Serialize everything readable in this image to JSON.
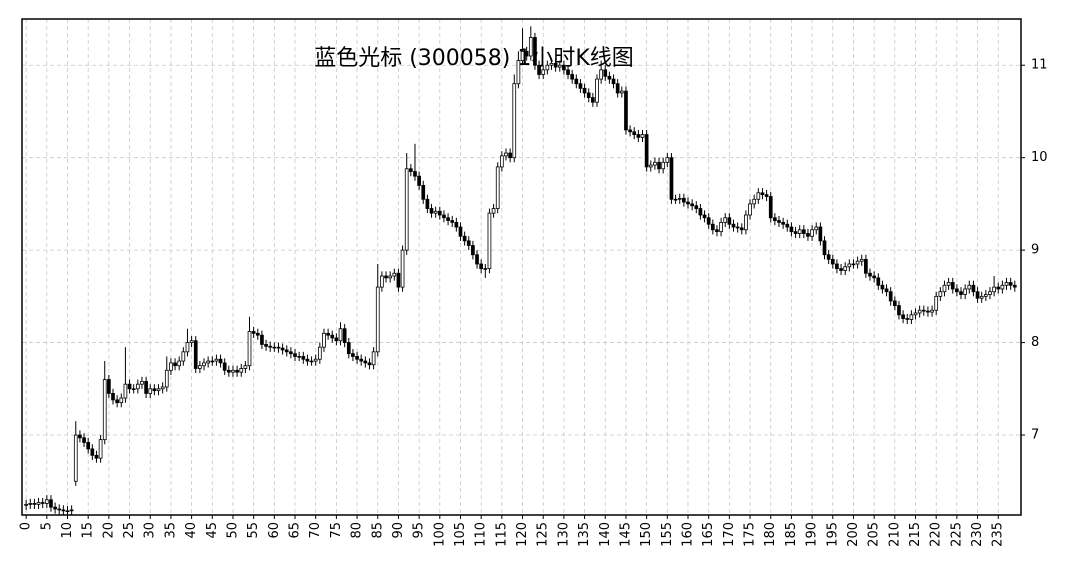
{
  "chart_data": {
    "type": "candlestick",
    "title": "蓝色光标 (300058) 1小时K线图",
    "open": [
      6.24,
      6.25,
      6.26,
      6.25,
      6.27,
      6.26,
      6.3,
      6.22,
      6.2,
      6.19,
      6.18,
      6.18,
      6.5,
      7.0,
      6.97,
      6.92,
      6.85,
      6.78,
      6.75,
      6.95,
      7.6,
      7.45,
      7.38,
      7.35,
      7.4,
      7.55,
      7.5,
      7.5,
      7.55,
      7.58,
      7.45,
      7.5,
      7.48,
      7.5,
      7.52,
      7.7,
      7.78,
      7.75,
      7.8,
      7.9,
      8.0,
      8.02,
      7.72,
      7.75,
      7.78,
      7.8,
      7.8,
      7.82,
      7.78,
      7.7,
      7.68,
      7.7,
      7.68,
      7.72,
      7.75,
      8.12,
      8.1,
      8.08,
      7.98,
      7.96,
      7.95,
      7.95,
      7.94,
      7.92,
      7.9,
      7.88,
      7.85,
      7.85,
      7.82,
      7.8,
      7.8,
      7.82,
      7.95,
      8.1,
      8.08,
      8.05,
      8.02,
      8.15,
      8.0,
      7.88,
      7.85,
      7.82,
      7.8,
      7.78,
      7.76,
      7.9,
      8.6,
      8.72,
      8.7,
      8.72,
      8.75,
      8.6,
      9.0,
      9.88,
      9.85,
      9.8,
      9.7,
      9.55,
      9.45,
      9.4,
      9.42,
      9.38,
      9.35,
      9.32,
      9.3,
      9.25,
      9.15,
      9.1,
      9.05,
      8.95,
      8.85,
      8.8,
      8.8,
      9.4,
      9.45,
      9.9,
      10.02,
      10.05,
      10.0,
      10.8,
      11.05,
      11.15,
      11.1,
      11.3,
      11.0,
      10.9,
      10.95,
      11.0,
      11.02,
      10.98,
      11.0,
      10.95,
      10.9,
      10.85,
      10.8,
      10.75,
      10.7,
      10.65,
      10.6,
      10.85,
      10.95,
      10.88,
      10.85,
      10.8,
      10.7,
      10.72,
      10.3,
      10.28,
      10.25,
      10.22,
      10.25,
      9.9,
      9.92,
      9.95,
      9.88,
      9.95,
      10.0,
      9.55,
      9.55,
      9.56,
      9.52,
      9.5,
      9.48,
      9.45,
      9.38,
      9.35,
      9.28,
      9.22,
      9.2,
      9.3,
      9.35,
      9.28,
      9.25,
      9.24,
      9.22,
      9.38,
      9.5,
      9.55,
      9.62,
      9.6,
      9.58,
      9.35,
      9.32,
      9.3,
      9.28,
      9.25,
      9.2,
      9.18,
      9.22,
      9.18,
      9.15,
      9.22,
      9.25,
      9.1,
      8.95,
      8.9,
      8.85,
      8.8,
      8.78,
      8.82,
      8.85,
      8.85,
      8.88,
      8.9,
      8.75,
      8.72,
      8.7,
      8.62,
      8.58,
      8.55,
      8.45,
      8.4,
      8.3,
      8.26,
      8.25,
      8.3,
      8.32,
      8.35,
      8.34,
      8.33,
      8.35,
      8.5,
      8.55,
      8.62,
      8.65,
      8.58,
      8.55,
      8.52,
      8.58,
      8.62,
      8.55,
      8.48,
      8.5,
      8.52,
      8.55,
      8.6,
      8.58,
      8.62,
      8.65,
      8.62
    ],
    "high": [
      6.3,
      6.31,
      6.31,
      6.32,
      6.32,
      6.35,
      6.35,
      6.27,
      6.25,
      6.24,
      6.23,
      6.24,
      7.15,
      7.05,
      7.02,
      6.97,
      6.9,
      6.83,
      7.0,
      7.8,
      7.65,
      7.5,
      7.43,
      7.45,
      7.95,
      7.6,
      7.55,
      7.6,
      7.63,
      7.63,
      7.55,
      7.55,
      7.55,
      7.57,
      7.85,
      7.83,
      7.83,
      7.85,
      7.95,
      8.15,
      8.07,
      8.07,
      7.8,
      7.83,
      7.85,
      7.85,
      7.87,
      7.87,
      7.83,
      7.75,
      7.75,
      7.75,
      7.77,
      7.8,
      8.28,
      8.17,
      8.15,
      8.13,
      8.03,
      8.01,
      8.0,
      8.0,
      7.99,
      7.97,
      7.95,
      7.93,
      7.9,
      7.9,
      7.87,
      7.85,
      7.87,
      8.0,
      8.15,
      8.15,
      8.13,
      8.1,
      8.22,
      8.2,
      8.05,
      7.93,
      7.9,
      7.87,
      7.85,
      7.83,
      7.95,
      8.85,
      8.77,
      8.77,
      8.77,
      8.8,
      8.8,
      9.05,
      10.05,
      9.93,
      10.15,
      9.85,
      9.75,
      9.6,
      9.5,
      9.47,
      9.47,
      9.43,
      9.4,
      9.37,
      9.35,
      9.3,
      9.2,
      9.15,
      9.1,
      9.0,
      8.9,
      8.85,
      9.45,
      9.5,
      9.95,
      10.07,
      10.1,
      10.1,
      10.9,
      11.15,
      11.4,
      11.2,
      11.42,
      11.35,
      11.05,
      11.0,
      11.05,
      11.07,
      11.07,
      11.05,
      11.05,
      11.0,
      10.95,
      10.9,
      10.85,
      10.8,
      10.75,
      10.7,
      10.9,
      11.05,
      11.0,
      10.93,
      10.9,
      10.85,
      10.77,
      10.77,
      10.35,
      10.33,
      10.3,
      10.3,
      10.3,
      9.97,
      10.0,
      10.0,
      10.0,
      10.05,
      10.05,
      9.6,
      9.61,
      9.61,
      9.57,
      9.55,
      9.53,
      9.5,
      9.43,
      9.4,
      9.33,
      9.27,
      9.35,
      9.4,
      9.4,
      9.33,
      9.3,
      9.29,
      9.43,
      9.55,
      9.6,
      9.67,
      9.67,
      9.65,
      9.63,
      9.4,
      9.37,
      9.35,
      9.33,
      9.3,
      9.25,
      9.27,
      9.27,
      9.23,
      9.27,
      9.3,
      9.3,
      9.15,
      9.0,
      8.95,
      8.9,
      8.85,
      8.87,
      8.9,
      8.9,
      8.93,
      8.95,
      8.95,
      8.8,
      8.77,
      8.75,
      8.67,
      8.63,
      8.6,
      8.5,
      8.45,
      8.35,
      8.31,
      8.35,
      8.37,
      8.4,
      8.4,
      8.39,
      8.4,
      8.55,
      8.6,
      8.67,
      8.7,
      8.7,
      8.63,
      8.6,
      8.63,
      8.67,
      8.67,
      8.6,
      8.55,
      8.57,
      8.6,
      8.72,
      8.65,
      8.67,
      8.7,
      8.7,
      8.67
    ],
    "low": [
      6.19,
      6.2,
      6.2,
      6.2,
      6.21,
      6.21,
      6.17,
      6.15,
      6.14,
      6.13,
      6.13,
      6.13,
      6.45,
      6.92,
      6.87,
      6.8,
      6.73,
      6.7,
      6.7,
      6.9,
      7.4,
      7.33,
      7.3,
      7.3,
      7.35,
      7.45,
      7.45,
      7.45,
      7.5,
      7.4,
      7.4,
      7.43,
      7.43,
      7.45,
      7.47,
      7.65,
      7.7,
      7.7,
      7.75,
      7.85,
      7.95,
      7.67,
      7.67,
      7.7,
      7.73,
      7.75,
      7.75,
      7.73,
      7.65,
      7.63,
      7.63,
      7.63,
      7.63,
      7.67,
      7.7,
      8.05,
      8.03,
      7.93,
      7.91,
      7.9,
      7.9,
      7.89,
      7.87,
      7.85,
      7.83,
      7.8,
      7.8,
      7.77,
      7.75,
      7.75,
      7.75,
      7.77,
      7.9,
      8.03,
      8.0,
      7.97,
      7.97,
      7.95,
      7.83,
      7.8,
      7.77,
      7.75,
      7.73,
      7.71,
      7.71,
      7.85,
      8.55,
      8.65,
      8.65,
      8.67,
      8.55,
      8.55,
      8.95,
      9.8,
      9.75,
      9.65,
      9.5,
      9.4,
      9.35,
      9.35,
      9.33,
      9.3,
      9.27,
      9.25,
      9.2,
      9.1,
      9.05,
      9.0,
      8.9,
      8.8,
      8.75,
      8.7,
      8.75,
      9.35,
      9.4,
      9.85,
      9.97,
      9.95,
      9.95,
      10.75,
      11.0,
      11.05,
      11.05,
      10.95,
      10.85,
      10.85,
      10.9,
      10.95,
      10.93,
      10.93,
      10.9,
      10.85,
      10.8,
      10.75,
      10.7,
      10.65,
      10.6,
      10.55,
      10.55,
      10.8,
      10.83,
      10.8,
      10.75,
      10.65,
      10.65,
      10.25,
      10.23,
      10.2,
      10.17,
      10.17,
      9.85,
      9.85,
      9.87,
      9.83,
      9.83,
      9.9,
      9.5,
      9.5,
      9.5,
      9.47,
      9.45,
      9.43,
      9.4,
      9.33,
      9.3,
      9.23,
      9.17,
      9.15,
      9.15,
      9.25,
      9.23,
      9.2,
      9.19,
      9.17,
      9.17,
      9.33,
      9.45,
      9.5,
      9.55,
      9.53,
      9.3,
      9.27,
      9.25,
      9.23,
      9.2,
      9.15,
      9.13,
      9.13,
      9.13,
      9.1,
      9.1,
      9.17,
      9.05,
      8.9,
      8.85,
      8.8,
      8.75,
      8.73,
      8.73,
      8.77,
      8.8,
      8.8,
      8.83,
      8.7,
      8.67,
      8.65,
      8.57,
      8.53,
      8.5,
      8.4,
      8.35,
      8.25,
      8.21,
      8.2,
      8.2,
      8.25,
      8.27,
      8.29,
      8.28,
      8.28,
      8.3,
      8.45,
      8.5,
      8.57,
      8.53,
      8.5,
      8.47,
      8.47,
      8.53,
      8.5,
      8.43,
      8.43,
      8.45,
      8.47,
      8.5,
      8.53,
      8.53,
      8.57,
      8.57,
      8.55
    ],
    "close": [
      6.25,
      6.26,
      6.25,
      6.27,
      6.26,
      6.3,
      6.22,
      6.2,
      6.19,
      6.18,
      6.18,
      6.19,
      7.0,
      6.97,
      6.92,
      6.85,
      6.78,
      6.75,
      6.95,
      7.6,
      7.45,
      7.38,
      7.35,
      7.4,
      7.55,
      7.5,
      7.5,
      7.55,
      7.58,
      7.45,
      7.5,
      7.48,
      7.5,
      7.52,
      7.7,
      7.78,
      7.75,
      7.8,
      7.9,
      8.0,
      8.02,
      7.72,
      7.75,
      7.78,
      7.8,
      7.8,
      7.82,
      7.78,
      7.7,
      7.68,
      7.7,
      7.68,
      7.72,
      7.75,
      8.12,
      8.1,
      8.08,
      7.98,
      7.96,
      7.95,
      7.95,
      7.94,
      7.92,
      7.9,
      7.88,
      7.85,
      7.85,
      7.82,
      7.8,
      7.8,
      7.82,
      7.95,
      8.1,
      8.08,
      8.05,
      8.02,
      8.15,
      8.0,
      7.88,
      7.85,
      7.82,
      7.8,
      7.78,
      7.76,
      7.9,
      8.6,
      8.72,
      8.7,
      8.72,
      8.75,
      8.6,
      9.0,
      9.88,
      9.85,
      9.8,
      9.7,
      9.55,
      9.45,
      9.4,
      9.42,
      9.38,
      9.35,
      9.32,
      9.3,
      9.25,
      9.15,
      9.1,
      9.05,
      8.95,
      8.85,
      8.8,
      8.8,
      9.4,
      9.45,
      9.9,
      10.02,
      10.05,
      10.0,
      10.8,
      11.05,
      11.15,
      11.1,
      11.3,
      11.0,
      10.9,
      10.95,
      11.0,
      11.02,
      10.98,
      11.0,
      10.95,
      10.9,
      10.85,
      10.8,
      10.75,
      10.7,
      10.65,
      10.6,
      10.85,
      10.95,
      10.88,
      10.85,
      10.8,
      10.7,
      10.72,
      10.3,
      10.28,
      10.25,
      10.22,
      10.25,
      9.9,
      9.92,
      9.95,
      9.88,
      9.95,
      10.0,
      9.55,
      9.55,
      9.56,
      9.52,
      9.5,
      9.48,
      9.45,
      9.38,
      9.35,
      9.28,
      9.22,
      9.2,
      9.3,
      9.35,
      9.28,
      9.25,
      9.24,
      9.22,
      9.38,
      9.5,
      9.55,
      9.62,
      9.6,
      9.58,
      9.35,
      9.32,
      9.3,
      9.28,
      9.25,
      9.2,
      9.18,
      9.22,
      9.18,
      9.15,
      9.22,
      9.25,
      9.1,
      8.95,
      8.9,
      8.85,
      8.8,
      8.78,
      8.82,
      8.85,
      8.85,
      8.88,
      8.9,
      8.75,
      8.72,
      8.7,
      8.62,
      8.58,
      8.55,
      8.45,
      8.4,
      8.3,
      8.26,
      8.25,
      8.3,
      8.32,
      8.35,
      8.34,
      8.33,
      8.35,
      8.5,
      8.55,
      8.62,
      8.65,
      8.58,
      8.55,
      8.52,
      8.58,
      8.62,
      8.55,
      8.48,
      8.5,
      8.52,
      8.55,
      8.6,
      8.58,
      8.62,
      8.65,
      8.62,
      8.6
    ],
    "up_color": "#ffffff",
    "down_color": "#000000",
    "edge_color": "#000000",
    "xlim": [
      -1,
      240.5
    ],
    "ylim": [
      6.135,
      11.5
    ],
    "xticks": [
      0,
      5,
      10,
      15,
      20,
      25,
      30,
      35,
      40,
      45,
      50,
      55,
      60,
      65,
      70,
      75,
      80,
      85,
      90,
      95,
      100,
      105,
      110,
      115,
      120,
      125,
      130,
      135,
      140,
      145,
      150,
      155,
      160,
      165,
      170,
      175,
      180,
      185,
      190,
      195,
      200,
      205,
      210,
      215,
      220,
      225,
      230,
      235
    ],
    "yticks": [
      7,
      8,
      9,
      10,
      11
    ],
    "grid": true
  }
}
